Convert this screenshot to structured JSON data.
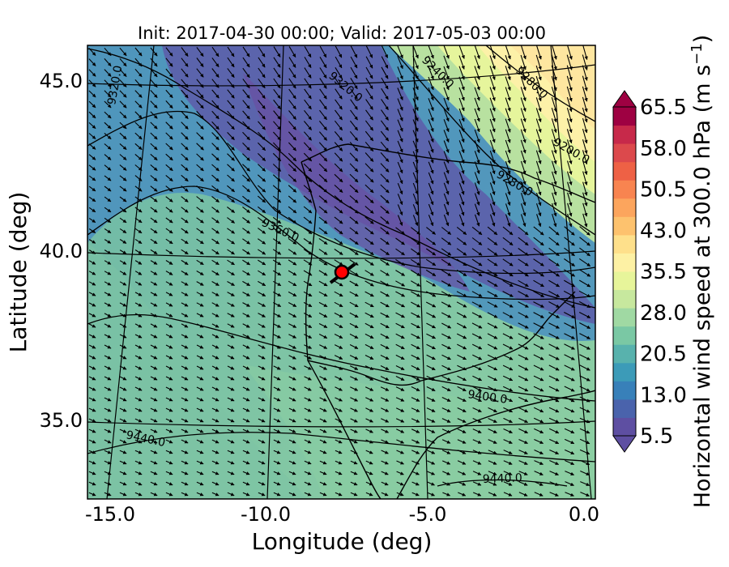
{
  "title": "Init: 2017-04-30 00:00; Valid: 2017-05-03 00:00",
  "xlabel": "Longitude (deg)",
  "ylabel": "Latitude (deg)",
  "x_ticks": [
    "-15.0",
    "-10.0",
    "-5.0",
    "0.0"
  ],
  "y_ticks": [
    "45.0",
    "40.0",
    "35.0"
  ],
  "colorbar": {
    "label": "Horizontal wind speed at 300.0 hPa (m s",
    "label_exp": "−1",
    "label_end": ")",
    "ticks": [
      "65.5",
      "58.0",
      "50.5",
      "43.0",
      "35.5",
      "28.0",
      "20.5",
      "13.0",
      "5.5"
    ],
    "colors": [
      "#5e4fa2",
      "#4a63ac",
      "#3880b9",
      "#3c9bb8",
      "#58b2ad",
      "#7ac8a4",
      "#a0d9a3",
      "#c7e89e",
      "#e7f59a",
      "#fdf1a4",
      "#fee08b",
      "#fdc26e",
      "#fca55d",
      "#f88450",
      "#ee6145",
      "#dc494c",
      "#c7294a",
      "#9e0142"
    ]
  },
  "contour_labels": [
    "9320.0",
    "9320.0",
    "9240.0",
    "9280.0",
    "9200.0",
    "9280.0",
    "9360.0",
    "9400.0",
    "9440.0",
    "9440.0"
  ],
  "marker": {
    "name": "location-marker",
    "color": "#ff0000",
    "lon": -7.6,
    "lat": 39.3
  },
  "map_extent": {
    "lon_min": -16,
    "lon_max": 0.3,
    "lat_min": 32.7,
    "lat_max": 46
  },
  "layers": [
    "wind-speed-filled-contours",
    "geopotential-height-contours",
    "wind-vectors",
    "coastlines",
    "graticule"
  ]
}
